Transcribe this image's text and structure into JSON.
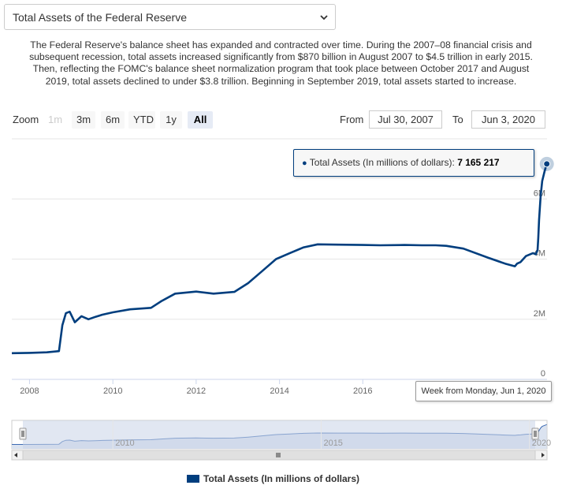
{
  "header": {
    "select_value": "Total Assets of the Federal Reserve",
    "description": "The Federal Reserve's balance sheet has expanded and contracted over time. During the 2007–08 financial crisis and subsequent recession, total assets increased significantly from $870 billion in August 2007 to $4.5 trillion in early 2015. Then, reflecting the FOMC's balance sheet normalization program that took place between October 2017 and August 2019, total assets declined to under $3.8 trillion. Beginning in September 2019, total assets started to increase."
  },
  "toolbar": {
    "zoom_label": "Zoom",
    "zoom_buttons": [
      "1m",
      "3m",
      "6m",
      "YTD",
      "1y",
      "All"
    ],
    "active_zoom": "All",
    "from_label": "From",
    "from_value": "Jul 30, 2007",
    "to_label": "To",
    "to_value": "Jun 3, 2020"
  },
  "tooltip": {
    "series_label": "Total Assets (In millions of dollars):",
    "value": "7 165 217",
    "x_label": "Week from Monday, Jun 1, 2020"
  },
  "legend": {
    "label": "Total Assets (In millions of dollars)"
  },
  "colors": {
    "series": "#003e7e",
    "navigator_fill": "#c9d3e8",
    "grid": "#e6e6e6"
  },
  "chart_data": {
    "type": "line",
    "series": [
      {
        "name": "Total Assets (In millions of dollars)",
        "x": [
          "2007-07-30",
          "2008-01-01",
          "2008-06-01",
          "2008-09-15",
          "2008-10-15",
          "2008-11-15",
          "2008-12-18",
          "2009-02-01",
          "2009-04-01",
          "2009-06-01",
          "2009-08-01",
          "2009-10-01",
          "2010-01-01",
          "2010-06-01",
          "2010-12-01",
          "2011-03-01",
          "2011-07-01",
          "2012-01-01",
          "2012-06-01",
          "2012-12-01",
          "2013-04-01",
          "2013-08-01",
          "2013-12-01",
          "2014-04-01",
          "2014-08-01",
          "2014-12-01",
          "2015-06-01",
          "2016-01-01",
          "2016-06-01",
          "2017-01-01",
          "2017-06-01",
          "2017-10-01",
          "2018-01-01",
          "2018-06-01",
          "2019-01-01",
          "2019-06-01",
          "2019-08-26",
          "2019-09-15",
          "2019-10-15",
          "2019-12-01",
          "2020-02-01",
          "2020-02-26",
          "2020-03-12",
          "2020-03-18",
          "2020-03-25",
          "2020-04-08",
          "2020-04-22",
          "2020-05-13",
          "2020-06-01"
        ],
        "y": [
          870000,
          880000,
          900000,
          940000,
          1800000,
          2200000,
          2250000,
          1900000,
          2100000,
          2000000,
          2080000,
          2150000,
          2230000,
          2330000,
          2380000,
          2600000,
          2850000,
          2920000,
          2850000,
          2910000,
          3200000,
          3600000,
          4000000,
          4200000,
          4390000,
          4490000,
          4480000,
          4470000,
          4460000,
          4470000,
          4460000,
          4460000,
          4440000,
          4350000,
          4050000,
          3850000,
          3760000,
          3850000,
          3900000,
          4100000,
          4200000,
          4160000,
          4300000,
          4700000,
          5300000,
          6100000,
          6600000,
          6930000,
          7165217
        ]
      }
    ],
    "y_ticks": [
      "0",
      "2M",
      "4M",
      "6M"
    ],
    "x_ticks": [
      "2008",
      "2010",
      "2012",
      "2014",
      "2016"
    ],
    "navigator_ticks": [
      "2010",
      "2015",
      "2020"
    ],
    "ylim": [
      0,
      8000000
    ],
    "xlim": [
      "2007-07-30",
      "2020-06-03"
    ],
    "grid": true,
    "legend_position": "bottom-center"
  }
}
